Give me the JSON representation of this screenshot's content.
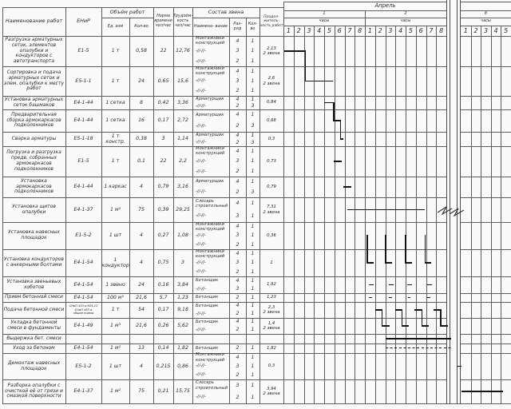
{
  "sheet": {
    "columns": {
      "name": "Наименование работ",
      "enir": "ЕНиР",
      "volume": "Объём работ",
      "unit": "Ед. изм",
      "qty": "Кол-во",
      "norm": "Норма времени чел/час",
      "labor": "Трудоём- кость чел/час",
      "crew": "Состав звена",
      "crew_name": "Наимено- вание",
      "grade": "Раз- ряд",
      "crew_qty": "Кол- во",
      "duration": "Продол- житель- ность работ"
    },
    "month": "Апрель",
    "days": [
      "1",
      "2",
      "8"
    ],
    "hours_caption": "часы",
    "hours": [
      "1",
      "2",
      "3",
      "4",
      "5",
      "6",
      "7",
      "8"
    ],
    "hours_day8": [
      "1",
      "2",
      "3",
      "4",
      "5"
    ]
  },
  "rows": [
    {
      "name": "Разгрузка арматурных сеток, элементов опалубки и кондукторов с автотранспорта",
      "enir": "Е1-5",
      "unit": "1 т",
      "qty": "0,58",
      "norm": "22",
      "labor": "12,76",
      "crew": [
        {
          "n": "Монтажники конструкций",
          "g": "4",
          "q": "1"
        },
        {
          "n": "-//-//-",
          "g": "3",
          "q": "1"
        },
        {
          "n": "-//-//-",
          "g": "2",
          "q": "1"
        }
      ],
      "dur1": "2,13",
      "dur2": "2 звена"
    },
    {
      "name": "Сортировка и подача арматурных сеток и элем. опалубки к месту работ",
      "enir": "Е5-1-1",
      "unit": "1 т",
      "qty": "24",
      "norm": "0,65",
      "labor": "15,6",
      "crew": [
        {
          "n": "Монтажники конструкций",
          "g": "4",
          "q": "1"
        },
        {
          "n": "-//-//-",
          "g": "3",
          "q": "1"
        },
        {
          "n": "-//-//-",
          "g": "2",
          "q": "1"
        }
      ],
      "dur1": "2,6",
      "dur2": "2 звена"
    },
    {
      "name": "Установка арматурных сеток башмаков",
      "enir": "Е4-1-44",
      "unit": "1 сетка",
      "qty": "8",
      "norm": "0,42",
      "labor": "3,36",
      "crew": [
        {
          "n": "Арматурщик",
          "g": "4",
          "q": "1"
        },
        {
          "n": "-//-//-",
          "g": "2",
          "q": "3"
        }
      ],
      "dur1": "0,84",
      "dur2": ""
    },
    {
      "name": "Предварительная сборка армокаркасов подколонников",
      "enir": "Е4-1-44",
      "unit": "1 сетка",
      "qty": "16",
      "norm": "0,17",
      "labor": "2,72",
      "crew": [
        {
          "n": "Арматурщик",
          "g": "4",
          "q": "1"
        },
        {
          "n": "-//-//-",
          "g": "2",
          "q": "3"
        }
      ],
      "dur1": "0,68",
      "dur2": ""
    },
    {
      "name": "Сварка арматуры",
      "enir": "Е5-1-18",
      "unit": "1 т констр.",
      "qty": "0,38",
      "norm": "3",
      "labor": "1,14",
      "crew": [
        {
          "n": "Арматурщик",
          "g": "4",
          "q": "1"
        },
        {
          "n": "-//-//-",
          "g": "2",
          "q": "3"
        }
      ],
      "dur1": "0,3",
      "dur2": ""
    },
    {
      "name": "Погрузка и разгрузка предв. собранных армокаркасов подколонников",
      "enir": "Е1-5",
      "unit": "1 т",
      "qty": "0,1",
      "norm": "22",
      "labor": "2,2",
      "crew": [
        {
          "n": "Монтажники конструкций",
          "g": "4",
          "q": "1"
        },
        {
          "n": "-//-//-",
          "g": "3",
          "q": "1"
        },
        {
          "n": "-//-//-",
          "g": "2",
          "q": "1"
        }
      ],
      "dur1": "0,73",
      "dur2": ""
    },
    {
      "name": "Установка армокаркасов подколонников",
      "enir": "Е4-1-44",
      "unit": "1 каркас",
      "qty": "4",
      "norm": "0,79",
      "labor": "3,16",
      "crew": [
        {
          "n": "Арматурщик",
          "g": "4",
          "q": "1"
        },
        {
          "n": "-//-//-",
          "g": "2",
          "q": "3"
        }
      ],
      "dur1": "0,79",
      "dur2": ""
    },
    {
      "name": "Установка щитов опалубки",
      "enir": "Е4-1-37",
      "unit": "1 м²",
      "qty": "75",
      "norm": "0,39",
      "labor": "29,25",
      "crew": [
        {
          "n": "Слесарь строительный",
          "g": "4",
          "q": "1"
        },
        {
          "n": "-//-//-",
          "g": "3",
          "q": "1"
        }
      ],
      "dur1": "7,31",
      "dur2": "2 звена"
    },
    {
      "name": "Установка навесных площадок",
      "enir": "Е1-5-2",
      "unit": "1 шт",
      "qty": "4",
      "norm": "0,27",
      "labor": "1,08",
      "crew": [
        {
          "n": "Монтажники конструкций",
          "g": "4",
          "q": "1"
        },
        {
          "n": "-//-//-",
          "g": "3",
          "q": "1"
        },
        {
          "n": "-//-//-",
          "g": "2",
          "q": "1"
        }
      ],
      "dur1": "0,36",
      "dur2": ""
    },
    {
      "name": "Установка кондукторов с анкерными болтами",
      "enir": "Е4-1-54",
      "unit": "1 кондуктор",
      "qty": "4",
      "norm": "0,75",
      "labor": "3",
      "crew": [
        {
          "n": "Монтажники конструкций",
          "g": "4",
          "q": "1"
        },
        {
          "n": "-//-//-",
          "g": "3",
          "q": "1"
        },
        {
          "n": "-//-//-",
          "g": "2",
          "q": "1"
        }
      ],
      "dur1": "1",
      "dur2": ""
    },
    {
      "name": "Установка звеньевых хоботов",
      "enir": "Е4-1-54",
      "unit": "1 звено",
      "qty": "24",
      "norm": "0,16",
      "labor": "3,84",
      "crew": [
        {
          "n": "Бетонщик",
          "g": "4",
          "q": "1"
        },
        {
          "n": "-//-//-",
          "g": "3",
          "q": "1"
        }
      ],
      "dur1": "1,92",
      "dur2": ""
    },
    {
      "name": "Прием бетонной смеси",
      "enir": "Е4-1-54",
      "unit": "100 м³",
      "qty": "21,6",
      "norm": "5,7",
      "labor": "1,23",
      "crew": [
        {
          "n": "Бетонщик",
          "g": "2",
          "q": "1"
        }
      ],
      "dur1": "1,23",
      "dur2": ""
    },
    {
      "name": "Подача бетонной смеси",
      "enir_lines": [
        "СНиП 453 и 824-13",
        "СНиП 487-в",
        "общие нормы"
      ],
      "unit": "1 т",
      "qty": "54",
      "norm": "0,17",
      "labor": "9,18",
      "crew": [
        {
          "n": "Бетонщик",
          "g": "4",
          "q": "1"
        },
        {
          "n": "-//-//-",
          "g": "2",
          "q": "1"
        }
      ],
      "dur1": "2,3",
      "dur2": "2 звена"
    },
    {
      "name": "Укладка бетонной смеси в фундаменты",
      "enir": "Е4-1-49",
      "unit": "1 м³",
      "qty": "21,6",
      "norm": "0,26",
      "labor": "5,62",
      "crew": [
        {
          "n": "Бетонщик",
          "g": "4",
          "q": "1"
        },
        {
          "n": "-//-//-",
          "g": "2",
          "q": "1"
        }
      ],
      "dur1": "1,4",
      "dur2": "2 звена"
    },
    {
      "name": "Выдержка бет. смеси",
      "enir": "",
      "unit": "",
      "qty": "",
      "norm": "",
      "labor": "",
      "crew": [],
      "dur1": "",
      "dur2": ""
    },
    {
      "name": "Уход за бетоном",
      "enir": "Е4-1-54",
      "unit": "1 м²",
      "qty": "13",
      "norm": "0,14",
      "labor": "1,82",
      "crew": [
        {
          "n": "Бетонщик",
          "g": "2",
          "q": "1"
        }
      ],
      "dur1": "1,82",
      "dur2": ""
    },
    {
      "name": "Демонтаж навесных площадок",
      "enir": "Е5-1-2",
      "unit": "1 шт",
      "qty": "4",
      "norm": "0,215",
      "labor": "0,86",
      "crew": [
        {
          "n": "Монтажники конструкций",
          "g": "4",
          "q": "1"
        },
        {
          "n": "-//-//-",
          "g": "3",
          "q": "1"
        },
        {
          "n": "-//-//-",
          "g": "2",
          "q": "1"
        }
      ],
      "dur1": "0,3",
      "dur2": ""
    },
    {
      "name": "Разборка опалубки с очисткой её от грязи и смазкой поверхности",
      "enir": "Е4-1-37",
      "unit": "1 м²",
      "qty": "75",
      "norm": "0,21",
      "labor": "15,75",
      "crew": [
        {
          "n": "Слесарь строительный",
          "g": "3",
          "q": "1"
        },
        {
          "n": "-//-//-",
          "g": "2",
          "q": "1"
        }
      ],
      "dur1": "3,94",
      "dur2": "2 звена"
    }
  ],
  "chart_data": {
    "type": "gantt",
    "month": "Апрель",
    "days_shown": [
      "1",
      "2",
      "8"
    ],
    "hours_per_day": 8,
    "axis_note": "axis d = hours from start of day 1 (0-16 spans days 1-2); axis e = hours from start of day 8",
    "segments": [
      {
        "row": 1,
        "axis": "d",
        "from": 0.1,
        "to": 2.15,
        "style": "solid"
      },
      {
        "row": 2,
        "axis": "d",
        "from": 2.15,
        "to": 4.85,
        "style": "solid"
      },
      {
        "row": 3,
        "axis": "d",
        "from": 4.0,
        "to": 4.95,
        "style": "solid"
      },
      {
        "row": 4,
        "axis": "d",
        "from": 4.95,
        "to": 5.6,
        "style": "solid"
      },
      {
        "row": 5,
        "axis": "d",
        "from": 5.6,
        "to": 5.9,
        "style": "solid"
      },
      {
        "row": 6,
        "axis": "d",
        "from": 4.95,
        "to": 5.7,
        "style": "solid"
      },
      {
        "row": 7,
        "axis": "d",
        "from": 5.9,
        "to": 6.65,
        "style": "solid"
      },
      {
        "row": 8,
        "axis": "d",
        "from": 6.3,
        "to": 13.9,
        "style": "solid"
      },
      {
        "row": 10,
        "axis": "d",
        "from": 8.25,
        "to": 8.85,
        "style": "solid"
      },
      {
        "row": 10,
        "axis": "d",
        "from": 10.05,
        "to": 10.65,
        "style": "solid"
      },
      {
        "row": 10,
        "axis": "d",
        "from": 12.0,
        "to": 12.6,
        "style": "solid"
      },
      {
        "row": 10,
        "axis": "d",
        "from": 13.9,
        "to": 14.5,
        "style": "solid"
      },
      {
        "row": 11,
        "axis": "d",
        "from": 8.4,
        "to": 8.85,
        "style": "solid"
      },
      {
        "row": 11,
        "axis": "d",
        "from": 10.35,
        "to": 10.8,
        "style": "solid"
      },
      {
        "row": 11,
        "axis": "d",
        "from": 12.15,
        "to": 12.6,
        "style": "solid"
      },
      {
        "row": 11,
        "axis": "d",
        "from": 14.1,
        "to": 14.55,
        "style": "solid"
      },
      {
        "row": 12,
        "axis": "d",
        "from": 8.4,
        "to": 8.7,
        "style": "solid"
      },
      {
        "row": 12,
        "axis": "d",
        "from": 10.35,
        "to": 10.65,
        "style": "solid"
      },
      {
        "row": 12,
        "axis": "d",
        "from": 12.2,
        "to": 12.5,
        "style": "solid"
      },
      {
        "row": 12,
        "axis": "d",
        "from": 14.15,
        "to": 14.45,
        "style": "solid"
      },
      {
        "row": 13,
        "axis": "d",
        "from": 9.0,
        "to": 9.7,
        "style": "solid"
      },
      {
        "row": 13,
        "axis": "d",
        "from": 10.95,
        "to": 11.65,
        "style": "solid"
      },
      {
        "row": 13,
        "axis": "d",
        "from": 12.9,
        "to": 13.6,
        "style": "solid"
      },
      {
        "row": 13,
        "axis": "d",
        "from": 14.75,
        "to": 15.45,
        "style": "solid"
      },
      {
        "row": 14,
        "axis": "d",
        "from": 9.7,
        "to": 10.4,
        "style": "solid"
      },
      {
        "row": 14,
        "axis": "d",
        "from": 11.65,
        "to": 12.35,
        "style": "solid"
      },
      {
        "row": 14,
        "axis": "d",
        "from": 13.6,
        "to": 14.3,
        "style": "solid"
      },
      {
        "row": 14,
        "axis": "d",
        "from": 15.45,
        "to": 16.15,
        "style": "solid"
      },
      {
        "row": 15,
        "axis": "d",
        "from": 10.05,
        "to": 16.5,
        "style": "solid"
      },
      {
        "row": 16,
        "axis": "d",
        "from": 10.0,
        "to": 16.5,
        "style": "dashed"
      },
      {
        "row": 17,
        "axis": "e",
        "from": -0.4,
        "to": 0.05,
        "style": "solid"
      },
      {
        "row": 18,
        "axis": "e",
        "from": 0.1,
        "to": 4.2,
        "style": "solid"
      }
    ],
    "connectors": [
      {
        "axis": "d",
        "at": 2.15,
        "rows": [
          1,
          2
        ]
      },
      {
        "axis": "d",
        "at": 4.95,
        "rows": [
          3,
          4
        ]
      },
      {
        "axis": "d",
        "at": 5.6,
        "rows": [
          4,
          5
        ]
      },
      {
        "axis": "d",
        "at": 8.25,
        "rows": [
          9,
          10
        ]
      },
      {
        "axis": "d",
        "at": 10.05,
        "rows": [
          9,
          10
        ]
      },
      {
        "axis": "d",
        "at": 12.0,
        "rows": [
          9,
          10
        ]
      },
      {
        "axis": "d",
        "at": 13.9,
        "rows": [
          9,
          10
        ]
      },
      {
        "axis": "d",
        "at": 9.7,
        "rows": [
          13,
          14
        ]
      },
      {
        "axis": "d",
        "at": 11.65,
        "rows": [
          13,
          14
        ]
      },
      {
        "axis": "d",
        "at": 13.6,
        "rows": [
          13,
          14
        ]
      },
      {
        "axis": "d",
        "at": 15.45,
        "rows": [
          13,
          14
        ]
      }
    ],
    "sheet_break": {
      "between_days": [
        "2",
        "8"
      ],
      "symbol_row": 8
    }
  }
}
